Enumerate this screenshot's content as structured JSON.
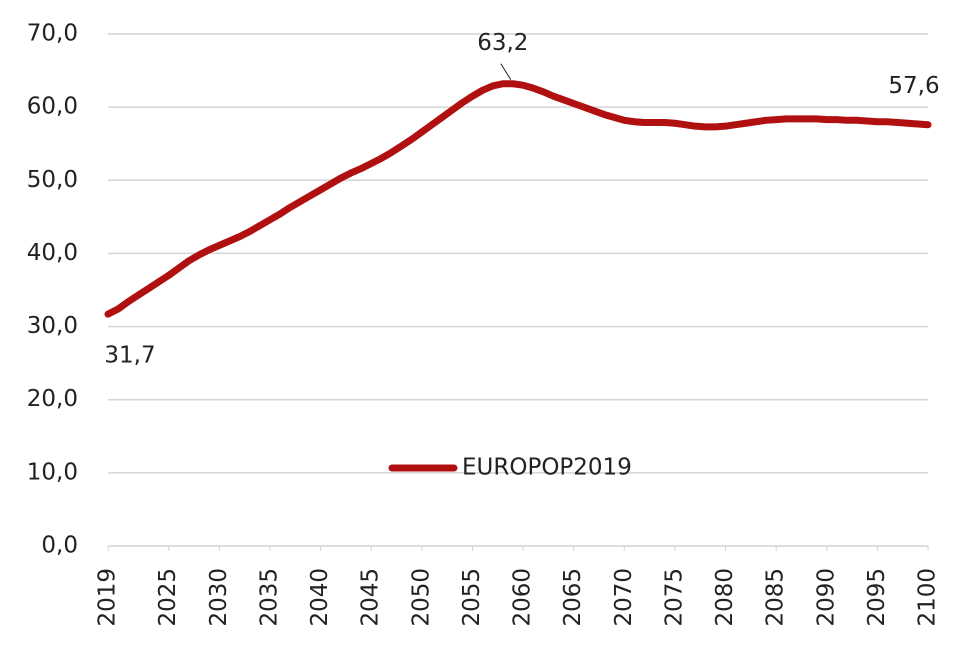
{
  "chart_data": {
    "type": "line",
    "x": [
      2019,
      2020,
      2021,
      2022,
      2023,
      2024,
      2025,
      2026,
      2027,
      2028,
      2029,
      2030,
      2031,
      2032,
      2033,
      2034,
      2035,
      2036,
      2037,
      2038,
      2039,
      2040,
      2041,
      2042,
      2043,
      2044,
      2045,
      2046,
      2047,
      2048,
      2049,
      2050,
      2051,
      2052,
      2053,
      2054,
      2055,
      2056,
      2057,
      2058,
      2059,
      2060,
      2061,
      2062,
      2063,
      2064,
      2065,
      2066,
      2067,
      2068,
      2069,
      2070,
      2071,
      2072,
      2073,
      2074,
      2075,
      2076,
      2077,
      2078,
      2079,
      2080,
      2081,
      2082,
      2083,
      2084,
      2085,
      2086,
      2087,
      2088,
      2089,
      2090,
      2091,
      2092,
      2093,
      2094,
      2095,
      2096,
      2097,
      2098,
      2099,
      2100
    ],
    "series": [
      {
        "name": "EUROPOP2019",
        "color": "#b01010",
        "values": [
          31.7,
          32.4,
          33.4,
          34.3,
          35.2,
          36.1,
          37.0,
          38.0,
          39.0,
          39.8,
          40.5,
          41.1,
          41.7,
          42.3,
          43.0,
          43.8,
          44.6,
          45.4,
          46.3,
          47.1,
          47.9,
          48.7,
          49.5,
          50.3,
          51.0,
          51.6,
          52.3,
          53.0,
          53.8,
          54.7,
          55.6,
          56.6,
          57.6,
          58.6,
          59.6,
          60.6,
          61.5,
          62.3,
          62.9,
          63.2,
          63.2,
          63.0,
          62.6,
          62.1,
          61.5,
          61.0,
          60.5,
          60.0,
          59.5,
          59.0,
          58.6,
          58.2,
          58.0,
          57.9,
          57.9,
          57.9,
          57.8,
          57.6,
          57.4,
          57.3,
          57.3,
          57.4,
          57.6,
          57.8,
          58.0,
          58.2,
          58.3,
          58.4,
          58.4,
          58.4,
          58.4,
          58.3,
          58.3,
          58.2,
          58.2,
          58.1,
          58.0,
          58.0,
          57.9,
          57.8,
          57.7,
          57.6
        ],
        "value_labels": [
          "31,7",
          null,
          null,
          null,
          null,
          null,
          null,
          null,
          null,
          null,
          null,
          null,
          null,
          null,
          null,
          null,
          null,
          null,
          null,
          null,
          null,
          null,
          null,
          null,
          null,
          null,
          null,
          null,
          null,
          null,
          null,
          null,
          null,
          null,
          null,
          null,
          null,
          null,
          null,
          "63,2",
          null,
          null,
          null,
          null,
          null,
          null,
          null,
          null,
          null,
          null,
          null,
          null,
          null,
          null,
          null,
          null,
          null,
          null,
          null,
          null,
          null,
          null,
          null,
          null,
          null,
          null,
          null,
          null,
          null,
          null,
          null,
          null,
          null,
          null,
          null,
          null,
          null,
          null,
          null,
          null,
          null,
          "57,6"
        ]
      }
    ],
    "xlim": [
      2019,
      2100
    ],
    "xticks": [
      2019,
      2025,
      2030,
      2035,
      2040,
      2045,
      2050,
      2055,
      2060,
      2065,
      2070,
      2075,
      2080,
      2085,
      2090,
      2095,
      2100
    ],
    "ylim": [
      0,
      70
    ],
    "yticks": [
      {
        "value": 0,
        "label": "0,0"
      },
      {
        "value": 10,
        "label": "10,0"
      },
      {
        "value": 20,
        "label": "20,0"
      },
      {
        "value": 30,
        "label": "30,0"
      },
      {
        "value": 40,
        "label": "40,0"
      },
      {
        "value": 50,
        "label": "50,0"
      },
      {
        "value": 60,
        "label": "60,0"
      },
      {
        "value": 70,
        "label": "70,0"
      }
    ],
    "grid": true,
    "legend": "center"
  }
}
